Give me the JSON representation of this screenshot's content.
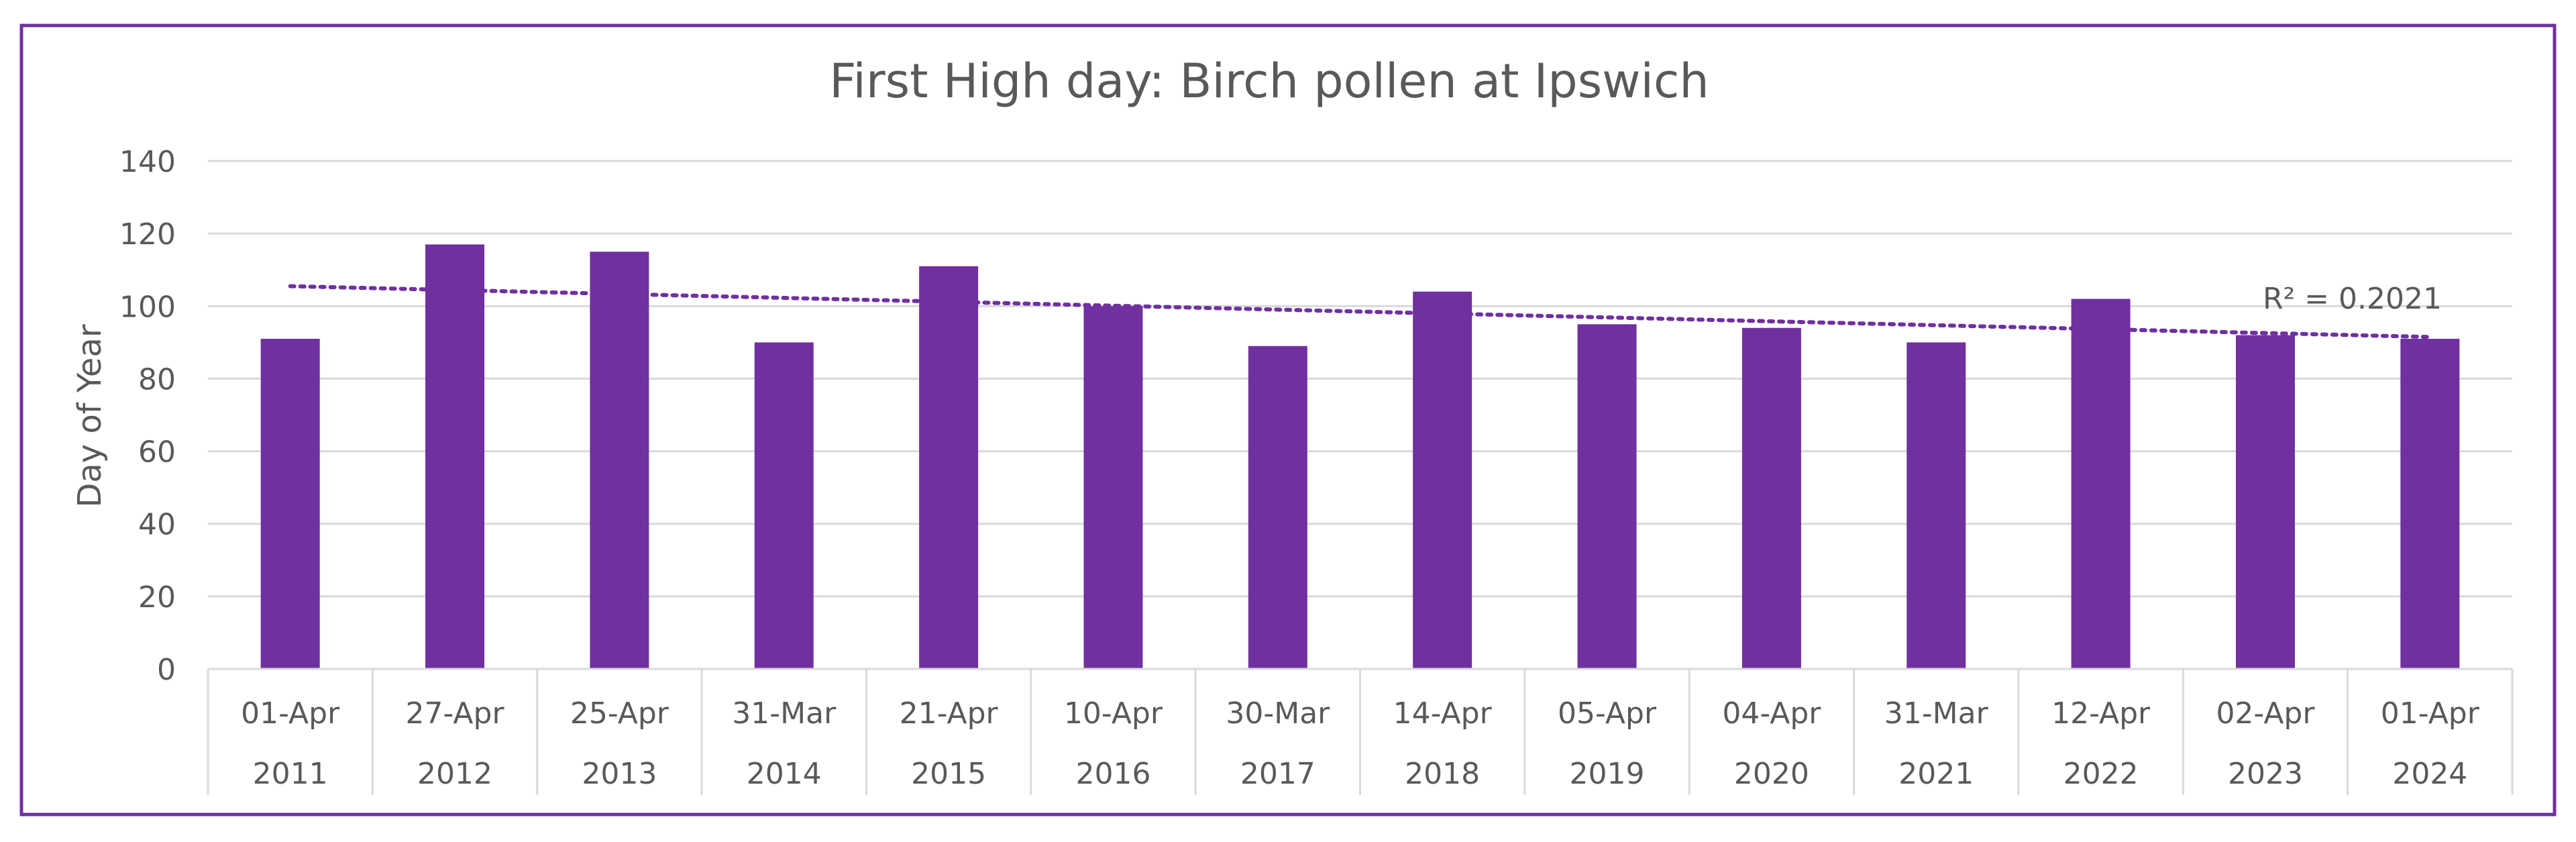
{
  "chart_data": {
    "type": "bar",
    "title": "First High day: Birch pollen at Ipswich",
    "ylabel": "Day of Year",
    "xlabel": "",
    "ylim": [
      0,
      140
    ],
    "yticks": [
      0,
      20,
      40,
      60,
      80,
      100,
      120,
      140
    ],
    "grid": true,
    "categories": [
      {
        "date": "01-Apr",
        "year": "2011"
      },
      {
        "date": "27-Apr",
        "year": "2012"
      },
      {
        "date": "25-Apr",
        "year": "2013"
      },
      {
        "date": "31-Mar",
        "year": "2014"
      },
      {
        "date": "21-Apr",
        "year": "2015"
      },
      {
        "date": "10-Apr",
        "year": "2016"
      },
      {
        "date": "30-Mar",
        "year": "2017"
      },
      {
        "date": "14-Apr",
        "year": "2018"
      },
      {
        "date": "05-Apr",
        "year": "2019"
      },
      {
        "date": "04-Apr",
        "year": "2020"
      },
      {
        "date": "31-Mar",
        "year": "2021"
      },
      {
        "date": "12-Apr",
        "year": "2022"
      },
      {
        "date": "02-Apr",
        "year": "2023"
      },
      {
        "date": "01-Apr",
        "year": "2024"
      }
    ],
    "values": [
      91,
      117,
      115,
      90,
      111,
      100,
      89,
      104,
      95,
      94,
      90,
      102,
      92,
      91
    ],
    "trendline": {
      "type": "linear",
      "style": "dotted",
      "start_value": 105.5,
      "end_value": 91.5,
      "r2_label": "R² = 0.2021"
    },
    "colors": {
      "bar": "#7030A0",
      "trendline": "#7030A0",
      "border": "#7030A0",
      "grid": "#D9D9D9",
      "text": "#595959"
    }
  }
}
